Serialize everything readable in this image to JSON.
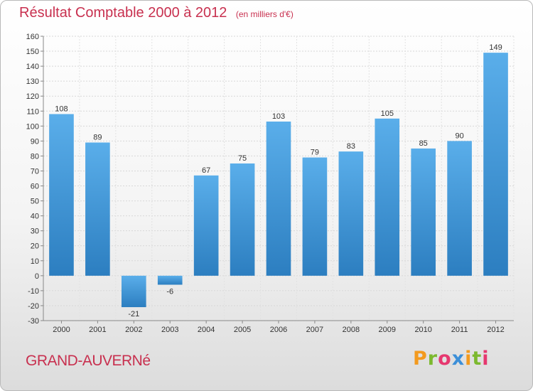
{
  "header": {
    "title": "Résultat Comptable 2000 à 2012",
    "subtitle": "(en milliers d'€)"
  },
  "footer": {
    "commune": "GRAND-AUVERNé",
    "logo_text": "Proxiti"
  },
  "colors": {
    "bar_light": "#5aaeea",
    "bar_dark": "#2c7ec0",
    "title": "#c8304f",
    "logo_letters": [
      "#f39a1e",
      "#7cb92f",
      "#e6386f",
      "#3c8fd8",
      "#f39a1e",
      "#7cb92f",
      "#e6386f"
    ]
  },
  "chart_data": {
    "type": "bar",
    "title": "Résultat Comptable 2000 à 2012",
    "subtitle": "(en milliers d'€)",
    "categories": [
      "2000",
      "2001",
      "2002",
      "2003",
      "2004",
      "2005",
      "2006",
      "2007",
      "2008",
      "2009",
      "2010",
      "2011",
      "2012"
    ],
    "values": [
      108,
      89,
      -21,
      -6,
      67,
      75,
      103,
      79,
      83,
      105,
      85,
      90,
      149
    ],
    "ylim": [
      -30,
      160
    ],
    "yticks": [
      -30,
      -20,
      -10,
      0,
      10,
      20,
      30,
      40,
      50,
      60,
      70,
      80,
      90,
      100,
      110,
      120,
      130,
      140,
      150,
      160
    ],
    "grid": true,
    "xlabel": "",
    "ylabel": ""
  }
}
